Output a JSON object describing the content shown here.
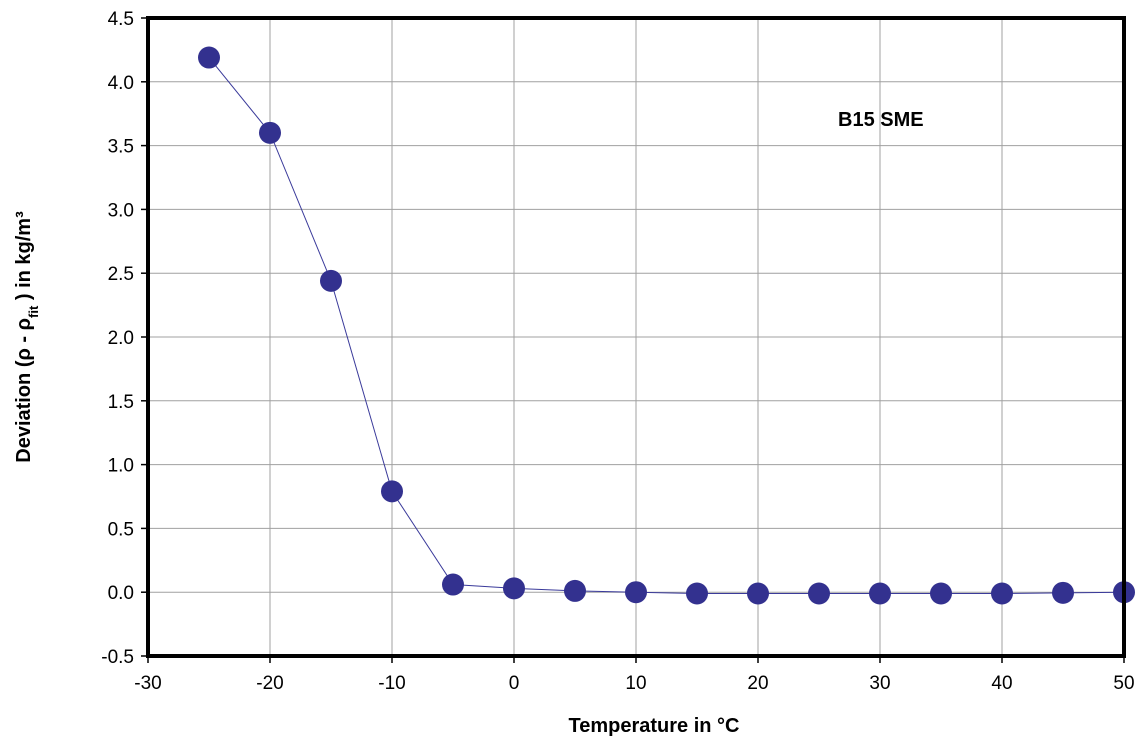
{
  "chart_data": {
    "type": "scatter",
    "title": "",
    "xlabel": "Temperature in °C",
    "ylabel": {
      "prefix": "Deviation (ρ - ρ",
      "subscript": "fit",
      "suffix": " ) in kg/m³"
    },
    "annotation": "B15 SME",
    "xlim": [
      -30,
      50
    ],
    "ylim": [
      -0.5,
      4.5
    ],
    "xticks": [
      -30,
      -20,
      -10,
      0,
      10,
      20,
      30,
      40,
      50
    ],
    "yticks": [
      -0.5,
      0.0,
      0.5,
      1.0,
      1.5,
      2.0,
      2.5,
      3.0,
      3.5,
      4.0,
      4.5
    ],
    "xtick_labels": [
      "-30",
      "-20",
      "-10",
      "0",
      "10",
      "20",
      "30",
      "40",
      "50"
    ],
    "ytick_labels": [
      "-0.5",
      "0.0",
      "0.5",
      "1.0",
      "1.5",
      "2.0",
      "2.5",
      "3.0",
      "3.5",
      "4.0",
      "4.5"
    ],
    "grid": true,
    "series": [
      {
        "x": [
          -25,
          -20,
          -15,
          -10,
          -5,
          0,
          5,
          10,
          15,
          20,
          25,
          30,
          35,
          40,
          45,
          50
        ],
        "y": [
          4.19,
          3.6,
          2.44,
          0.79,
          0.06,
          0.03,
          0.01,
          0.0,
          -0.01,
          -0.01,
          -0.01,
          -0.01,
          -0.01,
          -0.01,
          -0.005,
          0.0
        ],
        "color": "#33318f",
        "line_color": "#3a3a9a"
      }
    ]
  }
}
